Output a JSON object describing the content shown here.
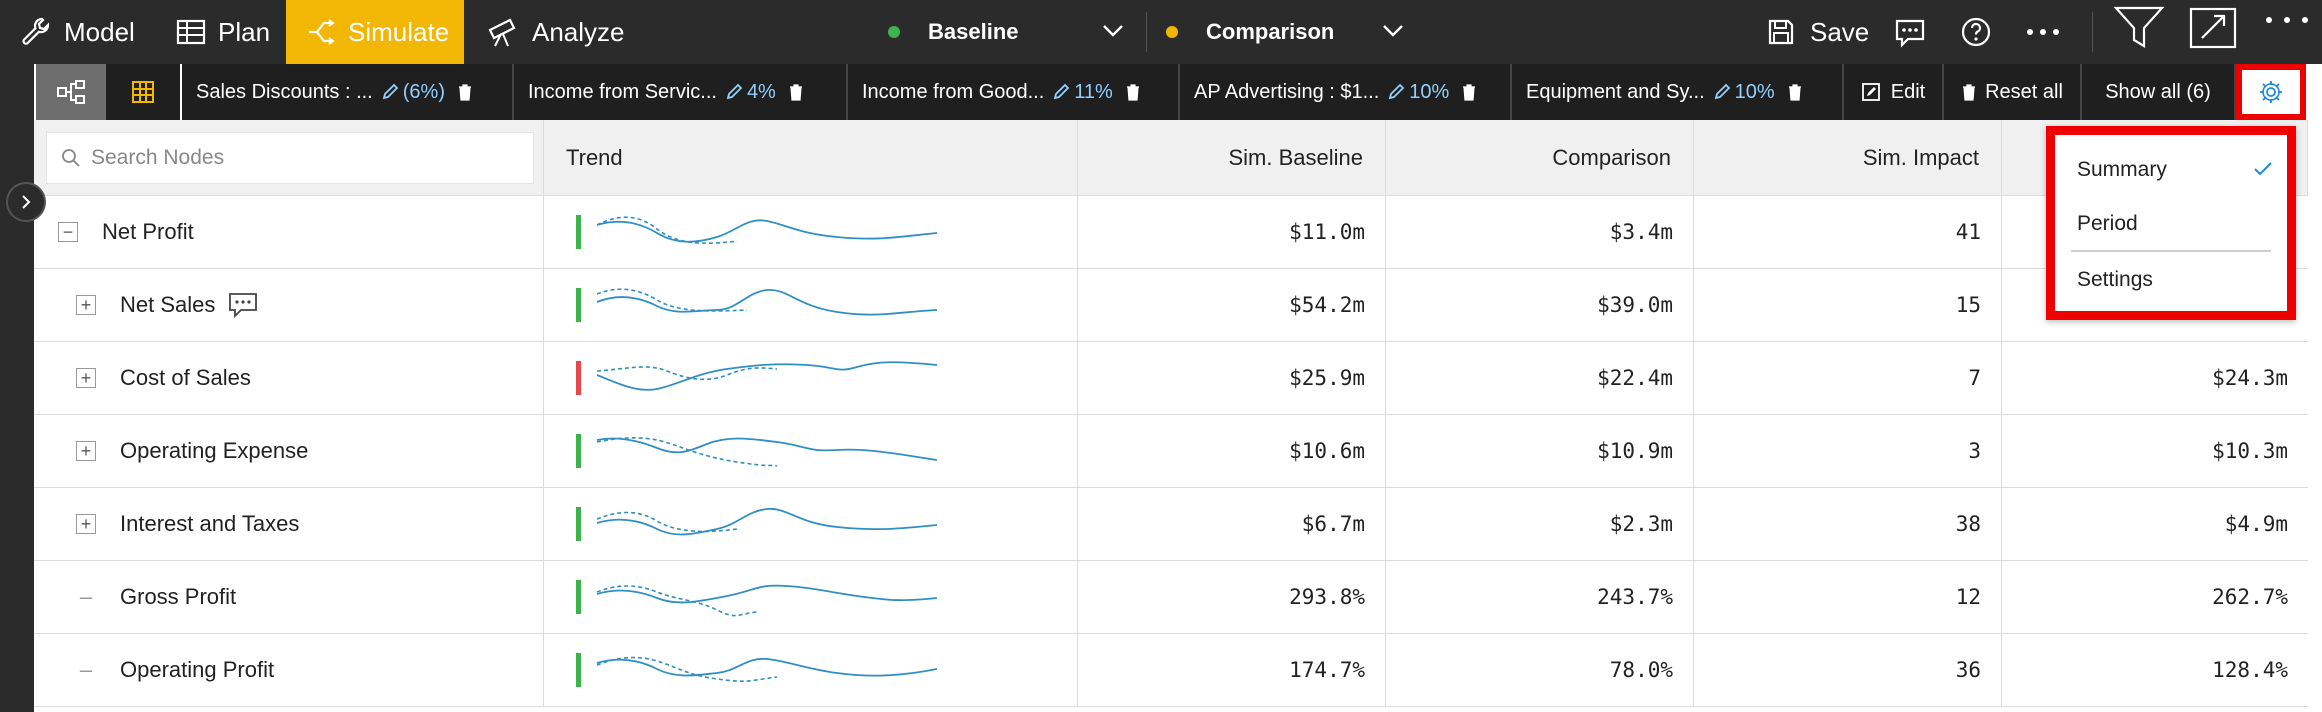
{
  "nav": {
    "tabs": [
      {
        "label": "Model"
      },
      {
        "label": "Plan"
      },
      {
        "label": "Simulate"
      },
      {
        "label": "Analyze"
      }
    ],
    "baseline": {
      "label": "Baseline",
      "color": "#3cb44b"
    },
    "comparison": {
      "label": "Comparison",
      "color": "#f2b705"
    },
    "save_label": "Save",
    "accent_color": "#f2b705"
  },
  "toolbar": {
    "chips": [
      {
        "name": "Sales Discounts : ...",
        "value": "(6%)"
      },
      {
        "name": "Income from Servic...",
        "value": "4%"
      },
      {
        "name": "Income from Good...",
        "value": "11%"
      },
      {
        "name": "AP Advertising : $1...",
        "value": "10%"
      },
      {
        "name": "Equipment and Sy...",
        "value": "10%"
      }
    ],
    "edit_label": "Edit",
    "reset_label": "Reset all",
    "show_all_label": "Show all (6)"
  },
  "table": {
    "search_placeholder": "Search Nodes",
    "headers": {
      "trend": "Trend",
      "sim_baseline": "Sim. Baseline",
      "comparison": "Comparison",
      "sim_impact": "Sim. Impact"
    },
    "rows": [
      {
        "name": "Net Profit",
        "expander": "minus",
        "trend_color": "#3cb44b",
        "sim_baseline": "$11.0m",
        "comparison": "$3.4m",
        "sim_impact": "41",
        "last": ""
      },
      {
        "name": "Net Sales",
        "expander": "plus",
        "comment": true,
        "trend_color": "#3cb44b",
        "sim_baseline": "$54.2m",
        "comparison": "$39.0m",
        "sim_impact": "15",
        "last": ""
      },
      {
        "name": "Cost of Sales",
        "expander": "plus",
        "trend_color": "#e8474b",
        "sim_baseline": "$25.9m",
        "comparison": "$22.4m",
        "sim_impact": "7",
        "last": "$24.3m"
      },
      {
        "name": "Operating Expense",
        "expander": "plus",
        "trend_color": "#3cb44b",
        "sim_baseline": "$10.6m",
        "comparison": "$10.9m",
        "sim_impact": "3",
        "last": "$10.3m"
      },
      {
        "name": "Interest and Taxes",
        "expander": "plus",
        "trend_color": "#3cb44b",
        "sim_baseline": "$6.7m",
        "comparison": "$2.3m",
        "sim_impact": "38",
        "last": "$4.9m"
      },
      {
        "name": "Gross Profit",
        "expander": "dash",
        "trend_color": "#3cb44b",
        "sim_baseline": "293.8%",
        "comparison": "243.7%",
        "sim_impact": "12",
        "last": "262.7%"
      },
      {
        "name": "Operating Profit",
        "expander": "dash",
        "trend_color": "#3cb44b",
        "sim_baseline": "174.7%",
        "comparison": "78.0%",
        "sim_impact": "36",
        "last": "128.4%"
      }
    ]
  },
  "menu": {
    "items": [
      {
        "label": "Summary",
        "checked": true
      },
      {
        "label": "Period",
        "checked": false
      },
      {
        "label": "Settings",
        "checked": false
      }
    ],
    "highlight_color": "#ee0000"
  }
}
